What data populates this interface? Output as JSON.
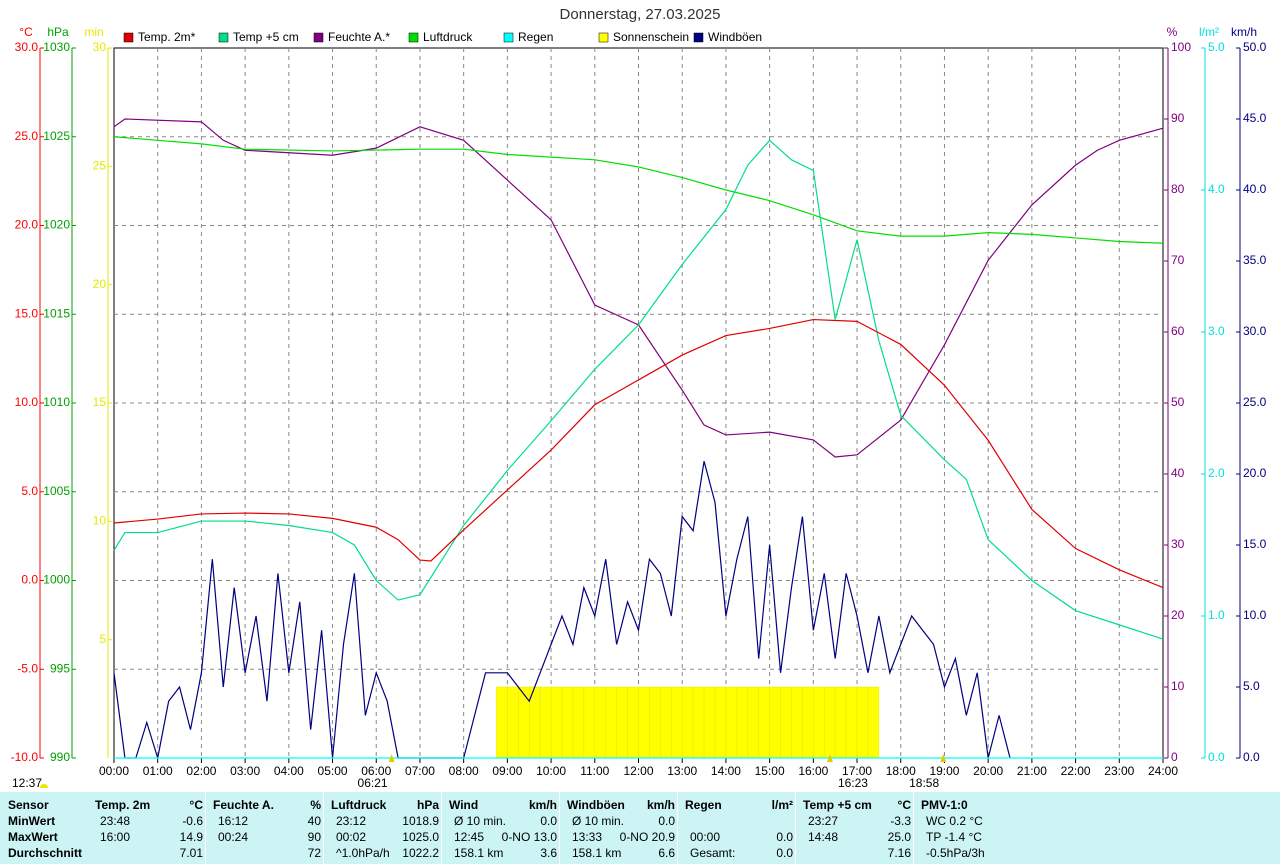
{
  "chart_data": {
    "type": "line",
    "title": "Donnerstag, 27.03.2025",
    "xlim": [
      0,
      24
    ],
    "xticks": [
      {
        "value": 0,
        "label": "00:00"
      },
      {
        "value": 1,
        "label": "01:00"
      },
      {
        "value": 2,
        "label": "02:00"
      },
      {
        "value": 3,
        "label": "03:00"
      },
      {
        "value": 4,
        "label": "04:00"
      },
      {
        "value": 5,
        "label": "05:00"
      },
      {
        "value": 6,
        "label": "06:00"
      },
      {
        "value": 7,
        "label": "07:00"
      },
      {
        "value": 8,
        "label": "08:00"
      },
      {
        "value": 9,
        "label": "09:00"
      },
      {
        "value": 10,
        "label": "10:00"
      },
      {
        "value": 11,
        "label": "11:00"
      },
      {
        "value": 12,
        "label": "12:00"
      },
      {
        "value": 13,
        "label": "13:00"
      },
      {
        "value": 14,
        "label": "14:00"
      },
      {
        "value": 15,
        "label": "15:00"
      },
      {
        "value": 16,
        "label": "16:00"
      },
      {
        "value": 17,
        "label": "17:00"
      },
      {
        "value": 18,
        "label": "18:00"
      },
      {
        "value": 19,
        "label": "19:00"
      },
      {
        "value": 20,
        "label": "20:00"
      },
      {
        "value": 21,
        "label": "21:00"
      },
      {
        "value": 22,
        "label": "22:00"
      },
      {
        "value": 23,
        "label": "23:00"
      },
      {
        "value": 24,
        "label": "24:00"
      }
    ],
    "grid": true,
    "axes": [
      {
        "unit": "°C",
        "side": "left",
        "color": "#ff0000",
        "grid": true,
        "lim": [
          -10,
          30
        ],
        "ticks": [
          {
            "value": -10,
            "label": "-10.0"
          },
          {
            "value": -5,
            "label": "-5.0"
          },
          {
            "value": 0,
            "label": "0.0"
          },
          {
            "value": 5,
            "label": "5.0"
          },
          {
            "value": 10,
            "label": "10.0"
          },
          {
            "value": 15,
            "label": "15.0"
          },
          {
            "value": 20,
            "label": "20.0"
          },
          {
            "value": 25,
            "label": "25.0"
          },
          {
            "value": 30,
            "label": "30.0"
          }
        ]
      },
      {
        "unit": "hPa",
        "side": "left",
        "color": "#00a000",
        "lim": [
          990,
          1030
        ],
        "ticks": [
          990,
          995,
          1000,
          1005,
          1010,
          1015,
          1020,
          1025,
          1030
        ]
      },
      {
        "unit": "min",
        "side": "left",
        "color": "#e8e800",
        "lim": [
          0,
          30
        ],
        "ticks": [
          5,
          10,
          15,
          20,
          25,
          30
        ]
      },
      {
        "unit": "%",
        "side": "right",
        "color": "#800080",
        "lim": [
          0,
          100
        ],
        "ticks": [
          0,
          10,
          20,
          30,
          40,
          50,
          60,
          70,
          80,
          90,
          100
        ]
      },
      {
        "unit": "l/m²",
        "side": "right",
        "color": "#00e0e0",
        "lim": [
          0,
          5
        ],
        "ticks": [
          {
            "value": 0,
            "label": "0.0"
          },
          {
            "value": 1,
            "label": "1.0"
          },
          {
            "value": 2,
            "label": "2.0"
          },
          {
            "value": 3,
            "label": "3.0"
          },
          {
            "value": 4,
            "label": "4.0"
          },
          {
            "value": 5,
            "label": "5.0"
          }
        ]
      },
      {
        "unit": "km/h",
        "side": "right",
        "color": "#000080",
        "lim": [
          0,
          50
        ],
        "ticks": [
          {
            "value": 0,
            "label": "0.0"
          },
          {
            "value": 5,
            "label": "5.0"
          },
          {
            "value": 10,
            "label": "10.0"
          },
          {
            "value": 15,
            "label": "15.0"
          },
          {
            "value": 20,
            "label": "20.0"
          },
          {
            "value": 25,
            "label": "25.0"
          },
          {
            "value": 30,
            "label": "30.0"
          },
          {
            "value": 35,
            "label": "35.0"
          },
          {
            "value": 40,
            "label": "40.0"
          },
          {
            "value": 45,
            "label": "45.0"
          },
          {
            "value": 50,
            "label": "50.0"
          }
        ]
      }
    ],
    "series": [
      {
        "name": "Temp. 2m*",
        "type": "line",
        "axis": "°C",
        "color": "#e00000",
        "x": [
          0,
          1,
          2,
          3,
          4,
          5,
          6,
          6.5,
          7,
          7.25,
          8,
          9,
          10,
          11,
          12,
          13,
          14,
          15,
          16,
          17,
          18,
          19,
          20,
          21,
          22,
          23,
          24
        ],
        "values": [
          3.24,
          3.46,
          3.75,
          3.8,
          3.75,
          3.5,
          3.0,
          2.3,
          1.15,
          1.1,
          2.85,
          5.1,
          7.35,
          9.9,
          11.3,
          12.7,
          13.8,
          14.2,
          14.7,
          14.6,
          13.3,
          11.0,
          7.9,
          4.0,
          1.8,
          0.6,
          -0.4
        ]
      },
      {
        "name": "Temp +5 cm",
        "type": "line",
        "axis": "°C",
        "color": "#00dd88",
        "x": [
          0,
          0.25,
          1,
          2,
          3,
          4,
          5,
          5.5,
          6,
          6.5,
          7,
          7.5,
          8,
          9,
          10,
          11,
          12,
          13,
          14,
          14.5,
          15,
          15.5,
          16,
          16.5,
          17,
          17.5,
          18,
          19,
          19.5,
          20,
          21,
          22,
          23,
          24
        ],
        "values": [
          1.7,
          2.7,
          2.7,
          3.35,
          3.35,
          3.1,
          2.7,
          2.0,
          0.0,
          -1.1,
          -0.8,
          1.15,
          3.1,
          6.2,
          9.0,
          11.9,
          14.4,
          17.8,
          20.9,
          23.4,
          24.8,
          23.7,
          23.1,
          14.7,
          19.2,
          13.5,
          9.3,
          6.8,
          5.7,
          2.3,
          0.0,
          -1.7,
          -2.5,
          -3.3
        ]
      },
      {
        "name": "Feuchte A.*",
        "type": "line",
        "axis": "%",
        "color": "#800080",
        "x": [
          0,
          0.25,
          2,
          2.5,
          3,
          5,
          6,
          7,
          8,
          9,
          10,
          11,
          12,
          13,
          13.5,
          14,
          15,
          16,
          16.5,
          17,
          18,
          19,
          20,
          21,
          22,
          22.5,
          23,
          24
        ],
        "values": [
          88.9,
          90,
          89.6,
          87,
          85.6,
          84.9,
          85.9,
          88.9,
          87,
          81.4,
          75.8,
          63.8,
          61,
          51.8,
          46.9,
          45.5,
          45.9,
          44.8,
          42.4,
          42.7,
          47.6,
          58.2,
          70.1,
          77.9,
          83.5,
          85.6,
          87,
          88.7
        ]
      },
      {
        "name": "Luftdruck",
        "type": "line",
        "axis": "hPa",
        "color": "#00dd00",
        "x": [
          0,
          1,
          2,
          3,
          5,
          7,
          8,
          9,
          11,
          12,
          13,
          14,
          15,
          16,
          17,
          18,
          19,
          20,
          21,
          22,
          23,
          24
        ],
        "values": [
          1025.0,
          1024.8,
          1024.6,
          1024.3,
          1024.2,
          1024.3,
          1024.3,
          1024.0,
          1023.7,
          1023.3,
          1022.7,
          1022.0,
          1021.4,
          1020.6,
          1019.7,
          1019.4,
          1019.4,
          1019.6,
          1019.5,
          1019.3,
          1019.1,
          1019.0
        ]
      },
      {
        "name": "Regen",
        "type": "line",
        "axis": "l/m²",
        "color": "#00ffff",
        "x": [
          0,
          24
        ],
        "values": [
          0,
          0
        ]
      },
      {
        "name": "Sonnenschein",
        "type": "bar",
        "axis": "min",
        "color": "#ffff00",
        "x": [
          8.75,
          9,
          9.25,
          9.5,
          9.75,
          10,
          10.25,
          10.5,
          10.75,
          11,
          11.25,
          11.5,
          11.75,
          12,
          12.25,
          12.5,
          12.75,
          13,
          13.25,
          13.5,
          13.75,
          14,
          14.25,
          14.5,
          14.75,
          15,
          15.25,
          15.5,
          15.75,
          16,
          16.25,
          16.5,
          16.75,
          17,
          17.25
        ],
        "values": [
          3,
          3,
          3,
          3,
          3,
          3,
          3,
          3,
          3,
          3,
          3,
          3,
          3,
          3,
          3,
          3,
          3,
          3,
          3,
          3,
          3,
          3,
          3,
          3,
          3,
          3,
          3,
          3,
          3,
          3,
          3,
          3,
          3,
          3,
          3
        ]
      },
      {
        "name": "Windböen",
        "type": "line",
        "axis": "km/h",
        "color": "#000080",
        "x": [
          0,
          0.25,
          0.5,
          0.75,
          1,
          1.25,
          1.5,
          1.75,
          2,
          2.25,
          2.5,
          2.75,
          3,
          3.25,
          3.5,
          3.75,
          4,
          4.25,
          4.5,
          4.75,
          5,
          5.25,
          5.5,
          5.75,
          6,
          6.25,
          6.5,
          6.75,
          7,
          7.25,
          7.5,
          7.75,
          8,
          8.25,
          8.5,
          8.75,
          9,
          9.25,
          9.5,
          9.75,
          10,
          10.25,
          10.5,
          10.75,
          11,
          11.25,
          11.5,
          11.75,
          12,
          12.25,
          12.5,
          12.75,
          13,
          13.25,
          13.5,
          13.75,
          14,
          14.25,
          14.5,
          14.75,
          15,
          15.25,
          15.5,
          15.75,
          16,
          16.25,
          16.5,
          16.75,
          17,
          17.25,
          17.5,
          17.75,
          18,
          18.25,
          18.5,
          18.75,
          19,
          19.25,
          19.5,
          19.75,
          20,
          20.25,
          20.5
        ],
        "values": [
          6,
          0,
          0,
          2.5,
          0,
          4,
          5,
          2,
          6,
          14,
          5,
          12,
          6,
          10,
          4,
          13,
          6,
          11,
          2,
          9,
          0,
          8,
          13,
          3,
          6,
          4,
          0,
          0,
          0,
          0,
          0,
          0,
          0,
          3,
          6,
          6,
          6,
          5,
          4,
          6,
          8,
          10,
          8,
          12,
          10,
          14,
          8,
          11,
          9,
          14,
          13,
          10,
          17,
          16,
          20.9,
          18,
          10,
          14,
          17,
          7,
          15,
          6,
          12,
          17,
          9,
          13,
          7,
          13,
          10,
          6,
          10,
          6,
          8,
          10,
          9,
          8,
          5,
          7,
          3,
          6,
          0,
          3,
          0
        ]
      }
    ],
    "annotations": [
      {
        "text": "06:21",
        "x": 6.35
      },
      {
        "text": "16:23",
        "x": 16.38
      },
      {
        "text": "18:58",
        "x": 18.97
      }
    ],
    "day_length": "12:37"
  },
  "stats": {
    "header": "Sensor",
    "row_labels": [
      "MinWert",
      "MaxWert",
      "Durchschnitt"
    ],
    "groups": [
      {
        "title": "Temp. 2m",
        "unit": "°C",
        "rows": [
          [
            "23:48",
            "-0.6"
          ],
          [
            "16:00",
            "14.9"
          ],
          [
            null,
            "7.01"
          ]
        ]
      },
      {
        "title": "Feuchte A.",
        "unit": "%",
        "rows": [
          [
            "16:12",
            "40"
          ],
          [
            "00:24",
            "90"
          ],
          [
            null,
            "72"
          ]
        ]
      },
      {
        "title": "Luftdruck",
        "unit": "hPa",
        "rows": [
          [
            "23:12",
            "1018.9"
          ],
          [
            "00:02",
            "1025.0"
          ],
          [
            "^1.0hPa/h",
            "1022.2"
          ]
        ]
      },
      {
        "title": "Wind",
        "unit": "km/h",
        "rows": [
          [
            "Ø 10 min.",
            "0.0"
          ],
          [
            "12:45",
            "0-NO 13.0"
          ],
          [
            "158.1 km",
            "3.6"
          ]
        ]
      },
      {
        "title": "Windböen",
        "unit": "km/h",
        "rows": [
          [
            "Ø 10 min.",
            "0.0"
          ],
          [
            "13:33",
            "0-NO 20.9"
          ],
          [
            "158.1 km",
            "6.6"
          ]
        ]
      },
      {
        "title": "Regen",
        "unit": "l/m²",
        "rows": [
          [
            null,
            null
          ],
          [
            "00:00",
            "0.0"
          ],
          [
            "Gesamt:",
            "0.0"
          ]
        ]
      },
      {
        "title": "Temp +5 cm",
        "unit": "°C",
        "rows": [
          [
            "23:27",
            "-3.3"
          ],
          [
            "14:48",
            "25.0"
          ],
          [
            null,
            "7.16"
          ]
        ]
      },
      {
        "title": "PMV-1:0",
        "rows": [
          [
            "WC 0.2 °C",
            null
          ],
          [
            "TP -1.4 °C",
            null
          ],
          [
            "-0.5hPa/3h",
            null
          ]
        ]
      }
    ]
  }
}
